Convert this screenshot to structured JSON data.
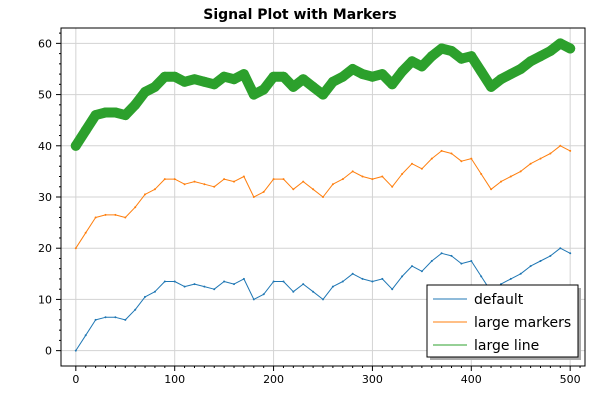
{
  "chart_data": {
    "type": "line",
    "title": "Signal Plot with Markers",
    "xlabel": "",
    "ylabel": "",
    "xlim": [
      -15,
      515
    ],
    "ylim": [
      -3,
      63
    ],
    "x_ticks": [
      0,
      100,
      200,
      300,
      400,
      500
    ],
    "y_ticks": [
      0,
      10,
      20,
      30,
      40,
      50,
      60
    ],
    "grid": true,
    "legend_position": "bottom-right",
    "series": [
      {
        "name": "default",
        "color": "#1f77b4",
        "style": "thin",
        "x": [
          0,
          10,
          20,
          30,
          40,
          50,
          60,
          70,
          80,
          90,
          100,
          110,
          120,
          130,
          140,
          150,
          160,
          170,
          180,
          190,
          200,
          210,
          220,
          230,
          240,
          250,
          260,
          270,
          280,
          290,
          300,
          310,
          320,
          330,
          340,
          350,
          360,
          370,
          380,
          390,
          400,
          410,
          420,
          430,
          440,
          450,
          460,
          470,
          480,
          490,
          500
        ],
        "y": [
          0,
          3,
          6,
          6.5,
          6.5,
          6,
          8,
          10.5,
          11.5,
          13.5,
          13.5,
          12.5,
          13,
          12.5,
          12,
          13.5,
          13,
          14,
          10,
          11,
          13.5,
          13.5,
          11.5,
          13,
          11.5,
          10,
          12.5,
          13.5,
          15,
          14,
          13.5,
          14,
          12,
          14.5,
          16.5,
          15.5,
          17.5,
          19,
          18.5,
          17,
          17.5,
          14.5,
          11.5,
          13,
          14,
          15,
          16.5,
          17.5,
          18.5,
          20,
          19
        ]
      },
      {
        "name": "large markers",
        "color": "#ff7f0e",
        "style": "thin",
        "x": [
          0,
          10,
          20,
          30,
          40,
          50,
          60,
          70,
          80,
          90,
          100,
          110,
          120,
          130,
          140,
          150,
          160,
          170,
          180,
          190,
          200,
          210,
          220,
          230,
          240,
          250,
          260,
          270,
          280,
          290,
          300,
          310,
          320,
          330,
          340,
          350,
          360,
          370,
          380,
          390,
          400,
          410,
          420,
          430,
          440,
          450,
          460,
          470,
          480,
          490,
          500
        ],
        "y": [
          20,
          23,
          26,
          26.5,
          26.5,
          26,
          28,
          30.5,
          31.5,
          33.5,
          33.5,
          32.5,
          33,
          32.5,
          32,
          33.5,
          33,
          34,
          30,
          31,
          33.5,
          33.5,
          31.5,
          33,
          31.5,
          30,
          32.5,
          33.5,
          35,
          34,
          33.5,
          34,
          32,
          34.5,
          36.5,
          35.5,
          37.5,
          39,
          38.5,
          37,
          37.5,
          34.5,
          31.5,
          33,
          34,
          35,
          36.5,
          37.5,
          38.5,
          40,
          39
        ]
      },
      {
        "name": "large line",
        "color": "#2ca02c",
        "style": "thick",
        "x": [
          0,
          10,
          20,
          30,
          40,
          50,
          60,
          70,
          80,
          90,
          100,
          110,
          120,
          130,
          140,
          150,
          160,
          170,
          180,
          190,
          200,
          210,
          220,
          230,
          240,
          250,
          260,
          270,
          280,
          290,
          300,
          310,
          320,
          330,
          340,
          350,
          360,
          370,
          380,
          390,
          400,
          410,
          420,
          430,
          440,
          450,
          460,
          470,
          480,
          490,
          500
        ],
        "y": [
          40,
          43,
          46,
          46.5,
          46.5,
          46,
          48,
          50.5,
          51.5,
          53.5,
          53.5,
          52.5,
          53,
          52.5,
          52,
          53.5,
          53,
          54,
          50,
          51,
          53.5,
          53.5,
          51.5,
          53,
          51.5,
          50,
          52.5,
          53.5,
          55,
          54,
          53.5,
          54,
          52,
          54.5,
          56.5,
          55.5,
          57.5,
          59,
          58.5,
          57,
          57.5,
          54.5,
          51.5,
          53,
          54,
          55,
          56.5,
          57.5,
          58.5,
          60,
          59
        ]
      }
    ]
  }
}
